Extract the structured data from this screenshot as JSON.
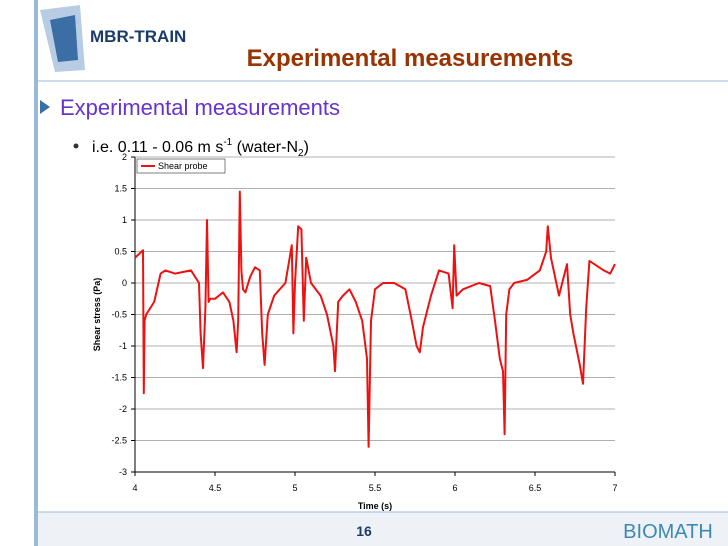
{
  "header": {
    "logo": "MBR-TRAIN",
    "title": "Experimental measurements"
  },
  "bullets": {
    "main": "Experimental measurements",
    "sub": {
      "text": "i.e. 0.11 - 0.06 m s",
      "sup": "-1",
      "mid": " (water-N",
      "sub": "2",
      "end": ")"
    }
  },
  "footer": {
    "page": "16",
    "logo": "BIOMATH"
  },
  "chart_data": {
    "type": "line",
    "xlabel": "Time (s)",
    "ylabel": "Shear stress (Pa)",
    "x": [
      4.0,
      4.05,
      4.055,
      4.06,
      4.07,
      4.12,
      4.16,
      4.19,
      4.25,
      4.35,
      4.4,
      4.41,
      4.425,
      4.44,
      4.45,
      4.46,
      4.47,
      4.5,
      4.55,
      4.59,
      4.615,
      4.635,
      4.645,
      4.655,
      4.665,
      4.675,
      4.69,
      4.72,
      4.75,
      4.78,
      4.795,
      4.81,
      4.83,
      4.87,
      4.94,
      4.98,
      4.99,
      5.0,
      5.02,
      5.04,
      5.055,
      5.07,
      5.1,
      5.16,
      5.2,
      5.24,
      5.25,
      5.27,
      5.3,
      5.34,
      5.38,
      5.42,
      5.45,
      5.46,
      5.475,
      5.5,
      5.55,
      5.62,
      5.69,
      5.73,
      5.76,
      5.78,
      5.8,
      5.82,
      5.85,
      5.9,
      5.96,
      5.985,
      5.995,
      6.01,
      6.05,
      6.15,
      6.22,
      6.25,
      6.28,
      6.3,
      6.31,
      6.32,
      6.34,
      6.37,
      6.45,
      6.53,
      6.57,
      6.58,
      6.6,
      6.65,
      6.7,
      6.72,
      6.74,
      6.78,
      6.8,
      6.82,
      6.84,
      6.87,
      6.93,
      6.97,
      7.0
    ],
    "series": [
      {
        "name": "Shear probe",
        "color": "#ee1111",
        "values": [
          0.4,
          0.52,
          -1.75,
          -0.6,
          -0.5,
          -0.3,
          0.15,
          0.2,
          0.15,
          0.2,
          0.0,
          -0.8,
          -1.35,
          -0.4,
          1.0,
          -0.3,
          -0.25,
          -0.25,
          -0.15,
          -0.3,
          -0.6,
          -1.1,
          -0.6,
          1.45,
          0.2,
          -0.1,
          -0.15,
          0.1,
          0.25,
          0.2,
          -0.8,
          -1.3,
          -0.5,
          -0.2,
          0.0,
          0.6,
          -0.8,
          0.0,
          0.9,
          0.85,
          -0.6,
          0.4,
          0.0,
          -0.2,
          -0.5,
          -1.0,
          -1.4,
          -0.3,
          -0.2,
          -0.1,
          -0.3,
          -0.6,
          -1.2,
          -2.6,
          -0.6,
          -0.1,
          0.0,
          0.0,
          -0.1,
          -0.6,
          -1.0,
          -1.1,
          -0.7,
          -0.5,
          -0.2,
          0.2,
          0.15,
          -0.4,
          0.6,
          -0.2,
          -0.1,
          0.0,
          -0.05,
          -0.6,
          -1.2,
          -1.4,
          -2.4,
          -0.5,
          -0.1,
          0.0,
          0.05,
          0.2,
          0.5,
          0.9,
          0.4,
          -0.2,
          0.3,
          -0.5,
          -0.8,
          -1.3,
          -1.6,
          -0.4,
          0.35,
          0.3,
          0.2,
          0.15,
          0.3
        ]
      }
    ],
    "xlim": [
      4,
      7
    ],
    "xticks": [
      4,
      4.5,
      5,
      5.5,
      6,
      6.5,
      7
    ],
    "ylim": [
      -3,
      2
    ],
    "yticks": [
      2,
      1.5,
      1,
      0.5,
      0,
      -0.5,
      -1,
      -1.5,
      -2,
      -2.5,
      -3
    ],
    "grid": true,
    "legend": "top-left"
  }
}
